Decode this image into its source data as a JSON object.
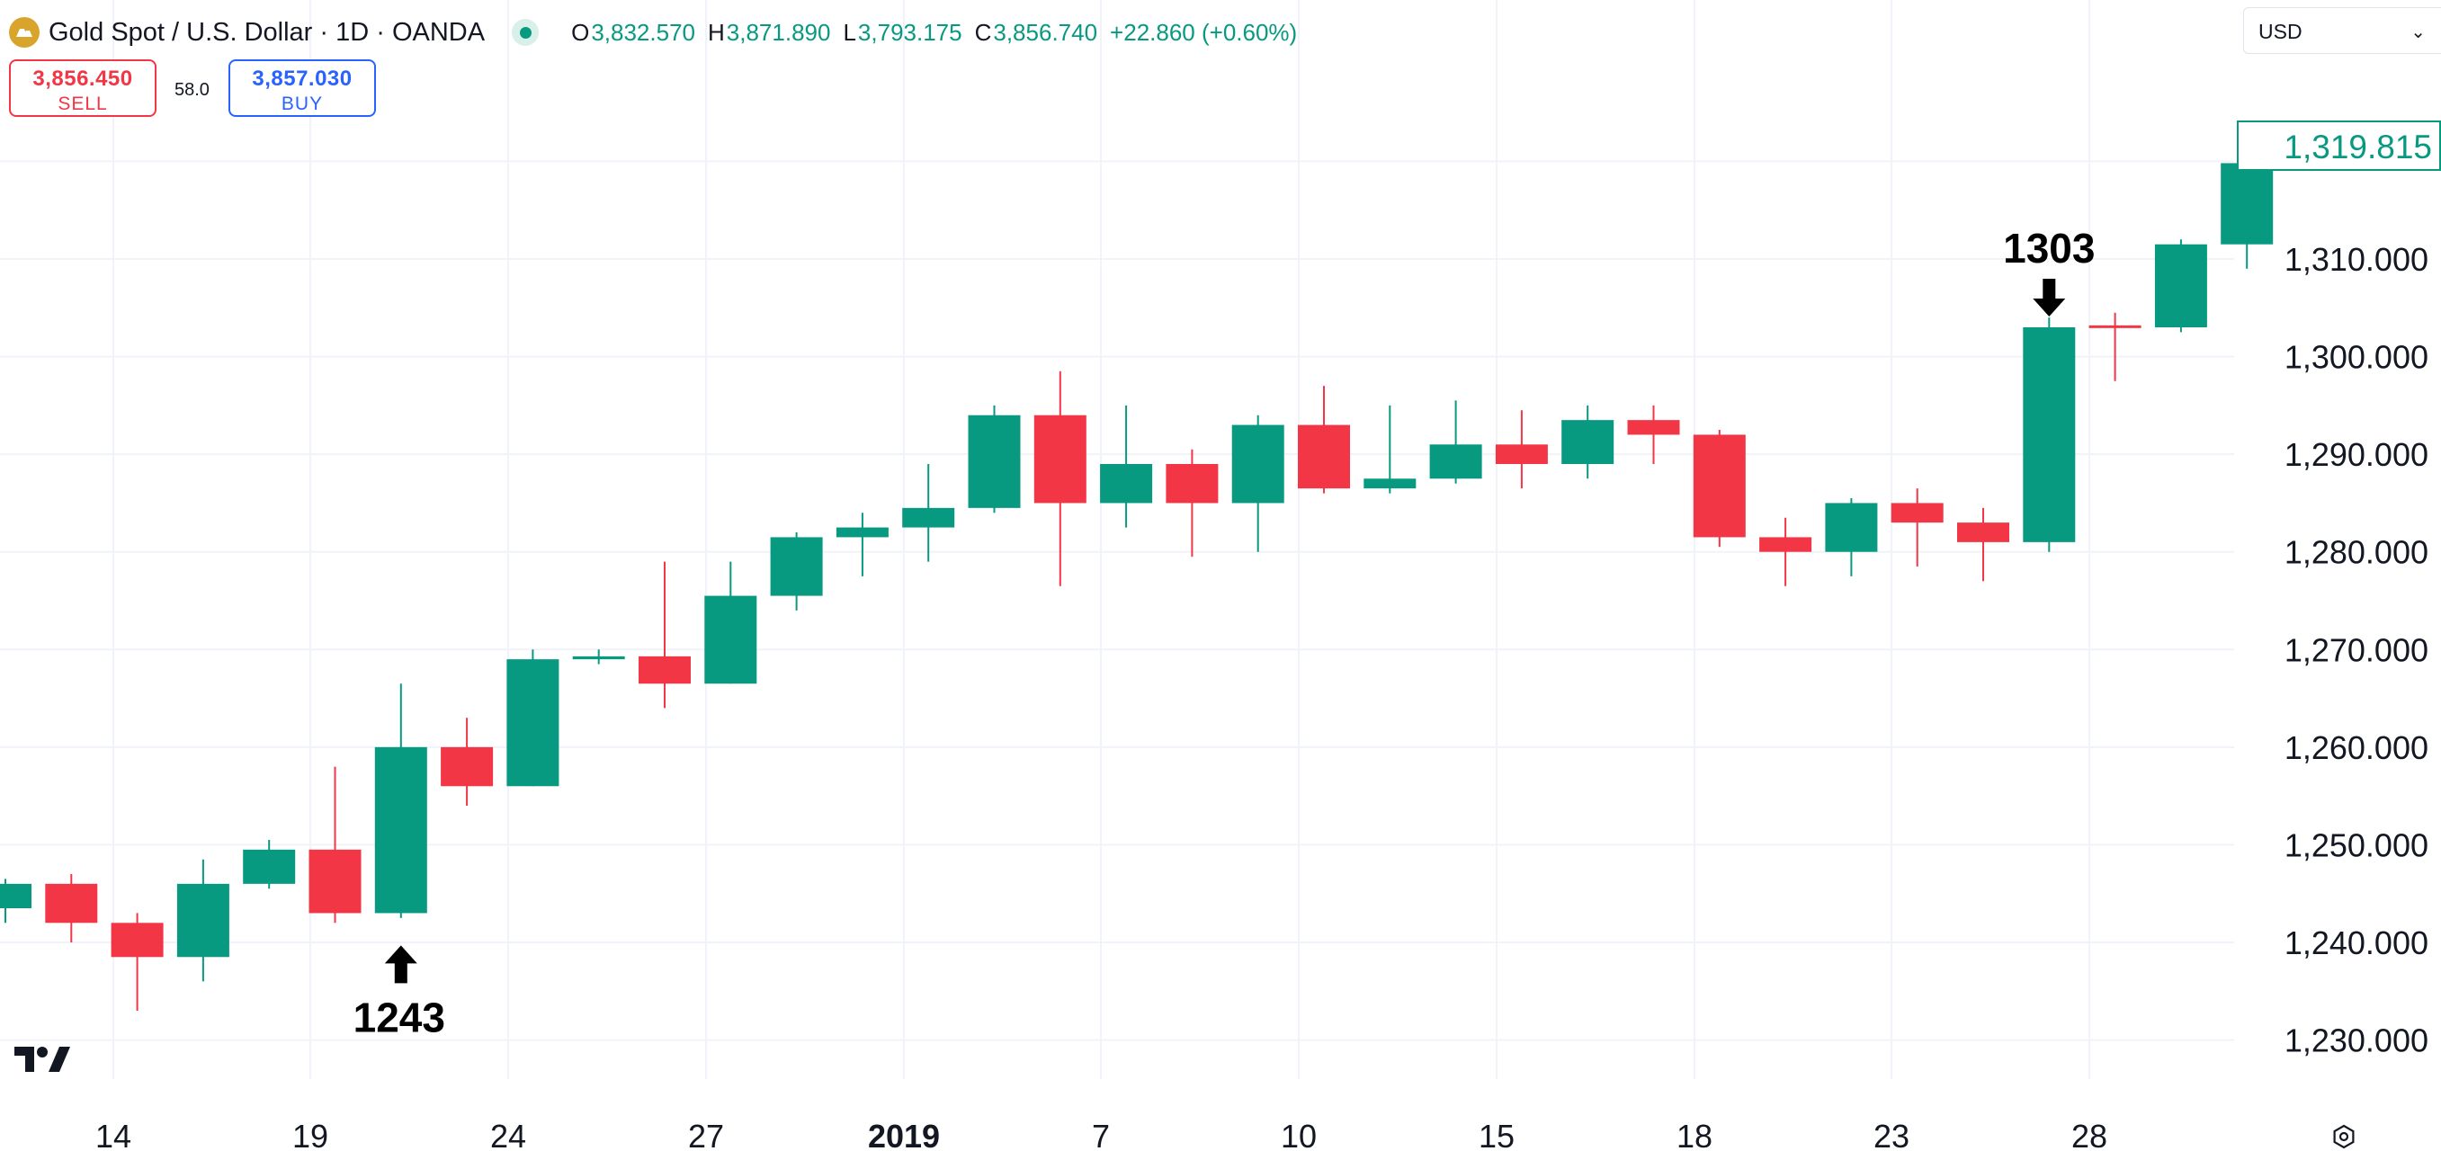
{
  "header": {
    "title": "Gold Spot / U.S. Dollar · 1D · OANDA",
    "ohlc": {
      "o_label": "O",
      "o_value": "3,832.570",
      "h_label": "H",
      "h_value": "3,871.890",
      "l_label": "L",
      "l_value": "3,793.175",
      "c_label": "C",
      "c_value": "3,856.740",
      "change": "+22.860 (+0.60%)"
    }
  },
  "trade": {
    "sell_price": "3,856.450",
    "sell_label": "SELL",
    "spread": "58.0",
    "buy_price": "3,857.030",
    "buy_label": "BUY"
  },
  "currency": {
    "value": "USD"
  },
  "last_price": "1,319.815",
  "colors": {
    "up": "#089981",
    "down": "#f23645",
    "grid": "#f0f3fa",
    "text": "#131722"
  },
  "icons": [
    "symbol-logo-icon",
    "status-dot-icon",
    "chevron-down-icon",
    "tradingview-logo-icon",
    "settings-icon",
    "arrow-up-icon",
    "arrow-down-icon"
  ],
  "chart_data": {
    "type": "candlestick",
    "x_tick_labels": [
      "14",
      "19",
      "24",
      "27",
      "2019",
      "7",
      "10",
      "15",
      "18",
      "23",
      "28"
    ],
    "y_tick_labels": [
      "1,230.000",
      "1,240.000",
      "1,250.000",
      "1,260.000",
      "1,270.000",
      "1,280.000",
      "1,290.000",
      "1,300.000",
      "1,310.000"
    ],
    "ylim": [
      1226,
      1331
    ],
    "grid": true,
    "candles": [
      {
        "o": 1243.5,
        "h": 1246.5,
        "l": 1242.0,
        "c": 1246.0
      },
      {
        "o": 1246.0,
        "h": 1247.0,
        "l": 1240.0,
        "c": 1242.0
      },
      {
        "o": 1242.0,
        "h": 1243.0,
        "l": 1233.0,
        "c": 1238.5
      },
      {
        "o": 1238.5,
        "h": 1248.5,
        "l": 1236.0,
        "c": 1246.0
      },
      {
        "o": 1246.0,
        "h": 1250.5,
        "l": 1245.5,
        "c": 1249.5
      },
      {
        "o": 1249.5,
        "h": 1258.0,
        "l": 1242.0,
        "c": 1243.0
      },
      {
        "o": 1243.0,
        "h": 1266.5,
        "l": 1242.5,
        "c": 1260.0
      },
      {
        "o": 1260.0,
        "h": 1263.0,
        "l": 1254.0,
        "c": 1256.0
      },
      {
        "o": 1256.0,
        "h": 1270.0,
        "l": 1256.0,
        "c": 1269.0
      },
      {
        "o": 1269.0,
        "h": 1270.0,
        "l": 1268.5,
        "c": 1269.3
      },
      {
        "o": 1269.3,
        "h": 1279.0,
        "l": 1264.0,
        "c": 1266.5
      },
      {
        "o": 1266.5,
        "h": 1279.0,
        "l": 1266.5,
        "c": 1275.5
      },
      {
        "o": 1275.5,
        "h": 1282.0,
        "l": 1274.0,
        "c": 1281.5
      },
      {
        "o": 1281.5,
        "h": 1284.0,
        "l": 1277.5,
        "c": 1282.5
      },
      {
        "o": 1282.5,
        "h": 1289.0,
        "l": 1279.0,
        "c": 1284.5
      },
      {
        "o": 1284.5,
        "h": 1295.0,
        "l": 1284.0,
        "c": 1294.0
      },
      {
        "o": 1294.0,
        "h": 1298.5,
        "l": 1276.5,
        "c": 1285.0
      },
      {
        "o": 1285.0,
        "h": 1295.0,
        "l": 1282.5,
        "c": 1289.0
      },
      {
        "o": 1289.0,
        "h": 1290.5,
        "l": 1279.5,
        "c": 1285.0
      },
      {
        "o": 1285.0,
        "h": 1294.0,
        "l": 1280.0,
        "c": 1293.0
      },
      {
        "o": 1293.0,
        "h": 1297.0,
        "l": 1286.0,
        "c": 1286.5
      },
      {
        "o": 1286.5,
        "h": 1295.0,
        "l": 1286.0,
        "c": 1287.5
      },
      {
        "o": 1287.5,
        "h": 1295.5,
        "l": 1287.0,
        "c": 1291.0
      },
      {
        "o": 1291.0,
        "h": 1294.5,
        "l": 1286.5,
        "c": 1289.0
      },
      {
        "o": 1289.0,
        "h": 1295.0,
        "l": 1287.5,
        "c": 1293.5
      },
      {
        "o": 1293.5,
        "h": 1295.0,
        "l": 1289.0,
        "c": 1292.0
      },
      {
        "o": 1292.0,
        "h": 1292.5,
        "l": 1280.5,
        "c": 1281.5
      },
      {
        "o": 1281.5,
        "h": 1283.5,
        "l": 1276.5,
        "c": 1280.0
      },
      {
        "o": 1280.0,
        "h": 1285.5,
        "l": 1277.5,
        "c": 1285.0
      },
      {
        "o": 1285.0,
        "h": 1286.5,
        "l": 1278.5,
        "c": 1283.0
      },
      {
        "o": 1283.0,
        "h": 1284.5,
        "l": 1277.0,
        "c": 1281.0
      },
      {
        "o": 1281.0,
        "h": 1304.0,
        "l": 1280.0,
        "c": 1303.0
      },
      {
        "o": 1303.2,
        "h": 1304.5,
        "l": 1297.5,
        "c": 1303.0
      },
      {
        "o": 1303.0,
        "h": 1312.0,
        "l": 1302.5,
        "c": 1311.5
      },
      {
        "o": 1311.5,
        "h": 1323.0,
        "l": 1309.0,
        "c": 1319.815
      }
    ],
    "annotations": [
      {
        "text": "1243",
        "candle_index": 6,
        "price": 1243,
        "arrow": "up"
      },
      {
        "text": "1303",
        "candle_index": 31,
        "price": 1303,
        "arrow": "down"
      }
    ]
  }
}
